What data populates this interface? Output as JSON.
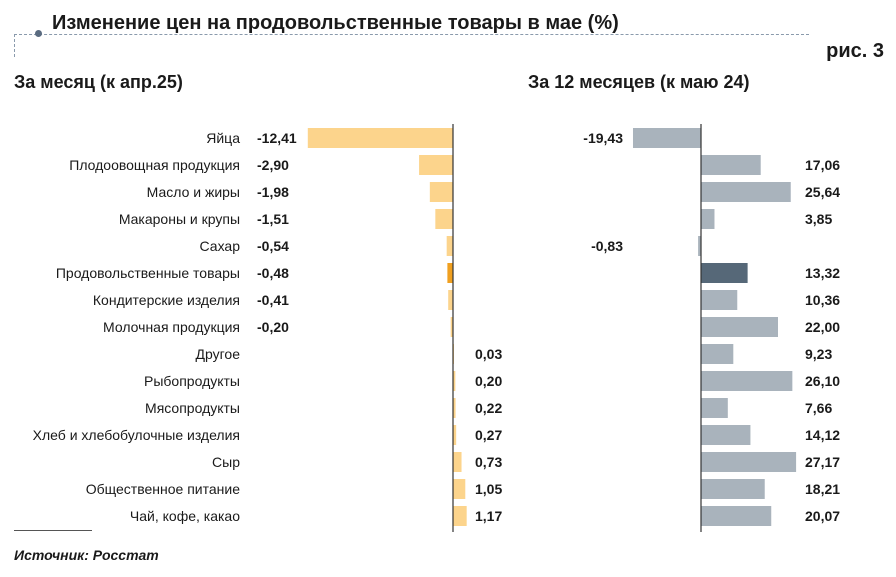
{
  "header": {
    "title": "Изменение цен на продовольственные товары в мае (%)",
    "figure_label": "рис. 3"
  },
  "footer": {
    "source": "Источник: Росстат"
  },
  "colors": {
    "left_bar": "#fcd48c",
    "left_highlight": "#f0a020",
    "right_bar": "#a9b3bc",
    "right_highlight": "#566878",
    "axis": "#333333"
  },
  "chart_data": [
    {
      "type": "bar",
      "orientation": "horizontal",
      "title": "За месяц (к апр.25)",
      "categories": [
        "Яйца",
        "Плодоовощная продукция",
        "Масло и жиры",
        "Макароны и крупы",
        "Сахар",
        "Продовольственные товары",
        "Кондитерские изделия",
        "Молочная продукция",
        "Другое",
        "Рыбопродукты",
        "Мясопродукты",
        "Хлеб и хлебобулочные изделия",
        "Сыр",
        "Общественное питание",
        "Чай, кофе, какао"
      ],
      "values": [
        -12.41,
        -2.9,
        -1.98,
        -1.51,
        -0.54,
        -0.48,
        -0.41,
        -0.2,
        0.03,
        0.2,
        0.22,
        0.27,
        0.73,
        1.05,
        1.17
      ],
      "labels": [
        "-12,41",
        "-2,90",
        "-1,98",
        "-1,51",
        "-0,54",
        "-0,48",
        "-0,41",
        "-0,20",
        "0,03",
        "0,20",
        "0,22",
        "0,27",
        "0,73",
        "1,05",
        "1,17"
      ],
      "highlight_category": "Продовольственные товары"
    },
    {
      "type": "bar",
      "orientation": "horizontal",
      "title": "За 12 месяцев (к маю 24)",
      "categories": [
        "Яйца",
        "Плодоовощная продукция",
        "Масло и жиры",
        "Макароны и крупы",
        "Сахар",
        "Продовольственные товары",
        "Кондитерские изделия",
        "Молочная продукция",
        "Другое",
        "Рыбопродукты",
        "Мясопродукты",
        "Хлеб и хлебобулочные изделия",
        "Сыр",
        "Общественное питание",
        "Чай, кофе, какао"
      ],
      "values": [
        -19.43,
        17.06,
        25.64,
        3.85,
        -0.83,
        13.32,
        10.36,
        22.0,
        9.23,
        26.1,
        7.66,
        14.12,
        27.17,
        18.21,
        20.07
      ],
      "labels": [
        "-19,43",
        "17,06",
        "25,64",
        "3,85",
        "-0,83",
        "13,32",
        "10,36",
        "22,00",
        "9,23",
        "26,10",
        "7,66",
        "14,12",
        "27,17",
        "18,21",
        "20,07"
      ],
      "highlight_category": "Продовольственные товары"
    }
  ]
}
